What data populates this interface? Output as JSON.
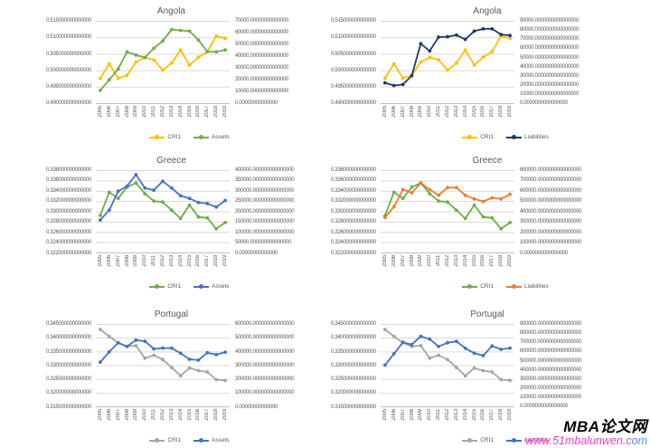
{
  "watermark": {
    "brand": "MBA论文网",
    "url": "www.51mbalunwen.com"
  },
  "colors": {
    "cri1_yellow": "#FFC000",
    "assets_green": "#70AD47",
    "liabilities_navy": "#1F3864",
    "assets_blue": "#4472C4",
    "liabilities_orange": "#ED7D31",
    "cri1_gray": "#A5A5A5",
    "gridline": "#D9D9D9",
    "axis_line": "#BFBFBF",
    "label_text": "#595959",
    "watermark_url_pink": "#EE3BC8",
    "watermark_url_cyan": "#18AEE8"
  },
  "chart_data": [
    {
      "type": "line",
      "title": "Angola",
      "grid": true,
      "legend_position": "bottom",
      "categories": [
        "2005",
        "2006",
        "2007",
        "2008",
        "2009",
        "2010",
        "2011",
        "2012",
        "2013",
        "2014",
        "2015",
        "2016",
        "2017",
        "2018",
        "2019"
      ],
      "left_axis": {
        "range": [
          0.49,
          0.515
        ],
        "labels": [
          "0.515000000000000",
          "0.510000000000000",
          "0.505000000000000",
          "0.500000000000000",
          "0.495000000000000",
          "0.490000000000000"
        ]
      },
      "right_axis": {
        "range": [
          0,
          70000
        ],
        "labels": [
          "70000.00000000000000",
          "60000.00000000000000",
          "50000.00000000000000",
          "40000.00000000000000",
          "30000.00000000000000",
          "20000.00000000000000",
          "10000.00000000000000",
          "0.00000000000000"
        ]
      },
      "series": [
        {
          "name": "CRI1",
          "axis": "left",
          "color": "#FFC000",
          "values": [
            0.4977,
            0.5021,
            0.4977,
            0.4986,
            0.5026,
            0.504,
            0.5033,
            0.5002,
            0.5023,
            0.5063,
            0.5017,
            0.5041,
            0.5058,
            0.5105,
            0.5098
          ]
        },
        {
          "name": "Assets",
          "axis": "right",
          "color": "#70AD47",
          "values": [
            11200,
            20200,
            29400,
            44000,
            41200,
            39200,
            47000,
            53200,
            63000,
            62200,
            61600,
            54000,
            44200,
            44000,
            45600
          ]
        }
      ]
    },
    {
      "type": "line",
      "title": "Angola",
      "grid": true,
      "legend_position": "bottom",
      "categories": [
        "2005",
        "2006",
        "2007",
        "2008",
        "2009",
        "2010",
        "2011",
        "2012",
        "2013",
        "2014",
        "2015",
        "2016",
        "2017",
        "2018",
        "2019"
      ],
      "left_axis": {
        "range": [
          0.49,
          0.515
        ],
        "labels": [
          "0.515000000000000",
          "0.510000000000000",
          "0.505000000000000",
          "0.500000000000000",
          "0.495000000000000",
          "0.490000000000000"
        ]
      },
      "right_axis": {
        "range": [
          0,
          90000
        ],
        "labels": [
          "90000.0000000000000000",
          "80000.0000000000000000",
          "70000.0000000000000000",
          "60000.0000000000000000",
          "50000.0000000000000000",
          "40000.0000000000000000",
          "30000.0000000000000000",
          "20000.0000000000000000",
          "10000.0000000000000000",
          "0.0000000000000000"
        ]
      },
      "series": [
        {
          "name": "CRI1",
          "axis": "left",
          "color": "#FFC000",
          "values": [
            0.4977,
            0.5021,
            0.4977,
            0.4986,
            0.5026,
            0.504,
            0.5033,
            0.5002,
            0.5023,
            0.5063,
            0.5017,
            0.5041,
            0.5058,
            0.5105,
            0.5098
          ]
        },
        {
          "name": "Liabilities",
          "axis": "right",
          "color": "#1F3864",
          "values": [
            22700,
            19800,
            20900,
            30600,
            65500,
            57600,
            72700,
            73100,
            74900,
            70200,
            79200,
            81700,
            81700,
            75600,
            74500
          ]
        }
      ]
    },
    {
      "type": "line",
      "title": "Greece",
      "grid": true,
      "legend_position": "bottom",
      "categories": [
        "2005",
        "2006",
        "2007",
        "2008",
        "2009",
        "2010",
        "2011",
        "2012",
        "2013",
        "2014",
        "2015",
        "2016",
        "2017",
        "2018",
        "2019"
      ],
      "left_axis": {
        "range": [
          0.322,
          0.338
        ],
        "labels": [
          "0.338000000000000",
          "0.336000000000000",
          "0.334000000000000",
          "0.332000000000000",
          "0.330000000000000",
          "0.328000000000000",
          "0.326000000000000",
          "0.324000000000000",
          "0.322000000000000"
        ]
      },
      "right_axis": {
        "range": [
          0,
          400000
        ],
        "labels": [
          "400000.000000000000000",
          "350000.000000000000000",
          "300000.000000000000000",
          "250000.000000000000000",
          "200000.000000000000000",
          "150000.000000000000000",
          "100000.000000000000000",
          "50000.000000000000000",
          "0.00000000000000"
        ]
      },
      "series": [
        {
          "name": "CRI1",
          "axis": "left",
          "color": "#70AD47",
          "values": [
            0.3293,
            0.3338,
            0.3326,
            0.3348,
            0.3356,
            0.3335,
            0.3321,
            0.3319,
            0.3303,
            0.3287,
            0.3313,
            0.329,
            0.3288,
            0.3267,
            0.3279
          ]
        },
        {
          "name": "Assets",
          "axis": "right",
          "color": "#4472C4",
          "values": [
            160000,
            208000,
            300000,
            325000,
            380000,
            315000,
            305000,
            348000,
            315000,
            278000,
            265000,
            245000,
            240000,
            223000,
            255000
          ]
        }
      ]
    },
    {
      "type": "line",
      "title": "Greece",
      "grid": true,
      "legend_position": "bottom",
      "categories": [
        "2005",
        "2006",
        "2007",
        "2008",
        "2009",
        "2010",
        "2011",
        "2012",
        "2013",
        "2014",
        "2015",
        "2016",
        "2017",
        "2018",
        "2019"
      ],
      "left_axis": {
        "range": [
          0.322,
          0.338
        ],
        "labels": [
          "0.338000000000000",
          "0.336000000000000",
          "0.334000000000000",
          "0.332000000000000",
          "0.330000000000000",
          "0.328000000000000",
          "0.326000000000000",
          "0.324000000000000",
          "0.322000000000000"
        ]
      },
      "right_axis": {
        "range": [
          0,
          800000
        ],
        "labels": [
          "800000.0000000000000000",
          "700000.0000000000000000",
          "600000.0000000000000000",
          "500000.0000000000000000",
          "400000.0000000000000000",
          "300000.0000000000000000",
          "200000.0000000000000000",
          "100000.0000000000000000",
          "0.0000000000000000"
        ]
      },
      "series": [
        {
          "name": "CRI1",
          "axis": "left",
          "color": "#70AD47",
          "values": [
            0.3293,
            0.3338,
            0.3326,
            0.3348,
            0.3356,
            0.3335,
            0.3321,
            0.3319,
            0.3303,
            0.3287,
            0.3313,
            0.329,
            0.3288,
            0.3267,
            0.3279
          ]
        },
        {
          "name": "Liabilities",
          "axis": "right",
          "color": "#ED7D31",
          "values": [
            345000,
            450000,
            615000,
            585000,
            680000,
            615000,
            560000,
            635000,
            635000,
            560000,
            525000,
            500000,
            535000,
            525000,
            570000
          ]
        }
      ]
    },
    {
      "type": "line",
      "title": "Portugal",
      "grid": true,
      "legend_position": "bottom",
      "categories": [
        "2005",
        "2006",
        "2007",
        "2008",
        "2009",
        "2010",
        "2011",
        "2012",
        "2013",
        "2014",
        "2015",
        "2016",
        "2017",
        "2018",
        "2019"
      ],
      "left_axis": {
        "range": [
          0.315,
          0.345
        ],
        "labels": [
          "0.345000000000000",
          "0.340000000000000",
          "0.335000000000000",
          "0.330000000000000",
          "0.325000000000000",
          "0.320000000000000",
          "0.315000000000000"
        ]
      },
      "right_axis": {
        "range": [
          0,
          600000
        ],
        "labels": [
          "600000.000000000000000",
          "500000.000000000000000",
          "400000.000000000000000",
          "300000.000000000000000",
          "200000.000000000000000",
          "100000.000000000000000",
          "0.00000000000000"
        ]
      },
      "series": [
        {
          "name": "CRI1",
          "axis": "left",
          "color": "#A5A5A5",
          "values": [
            0.3432,
            0.3406,
            0.3383,
            0.337,
            0.3373,
            0.3327,
            0.3338,
            0.3322,
            0.3293,
            0.3263,
            0.3291,
            0.3282,
            0.3277,
            0.3249,
            0.3246
          ]
        },
        {
          "name": "Assets",
          "axis": "right",
          "color": "#4472C4",
          "values": [
            326000,
            400000,
            466000,
            440000,
            486000,
            478000,
            422000,
            428000,
            428000,
            390000,
            346000,
            340000,
            394000,
            380000,
            398000
          ]
        }
      ]
    },
    {
      "type": "line",
      "title": "Portugal",
      "grid": true,
      "legend_position": "bottom",
      "categories": [
        "2005",
        "2006",
        "2007",
        "2008",
        "2009",
        "2010",
        "2011",
        "2012",
        "2013",
        "2014",
        "2015",
        "2016",
        "2017",
        "2018",
        "2019"
      ],
      "left_axis": {
        "range": [
          0.315,
          0.345
        ],
        "labels": [
          "0.345000000000000",
          "0.340000000000000",
          "0.335000000000000",
          "0.330000000000000",
          "0.325000000000000",
          "0.320000000000000",
          "0.315000000000000"
        ]
      },
      "right_axis": {
        "range": [
          0,
          900000
        ],
        "labels": [
          "900000.0000000000000000",
          "800000.0000000000000000",
          "700000.0000000000000000",
          "600000.0000000000000000",
          "500000.0000000000000000",
          "400000.0000000000000000",
          "300000.0000000000000000",
          "200000.0000000000000000",
          "100000.0000000000000000",
          "0.0000000000000000"
        ]
      },
      "series": [
        {
          "name": "CRI1",
          "axis": "left",
          "color": "#A5A5A5",
          "values": [
            0.3432,
            0.3406,
            0.3383,
            0.337,
            0.3373,
            0.3327,
            0.3338,
            0.3322,
            0.3293,
            0.3263,
            0.3291,
            0.3282,
            0.3277,
            0.3249,
            0.3246
          ]
        },
        {
          "name": "Liabilities",
          "axis": "right",
          "color": "#4472C4",
          "values": [
            456000,
            580000,
            705000,
            680000,
            770000,
            740000,
            660000,
            700000,
            715000,
            640000,
            585000,
            560000,
            665000,
            628000,
            642000
          ]
        }
      ]
    }
  ]
}
